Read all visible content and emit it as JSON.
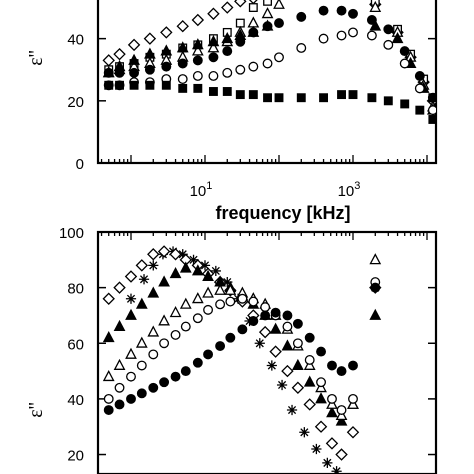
{
  "chart_data": [
    {
      "type": "scatter",
      "xscale": "log",
      "xlabel": "frequency [kHz]",
      "ylabel": "ε''",
      "xlim": [
        0.5,
        15000
      ],
      "ylim": [
        0,
        55
      ],
      "yticks": [
        "0",
        "20",
        "40"
      ],
      "xticks": [
        {
          "base": "10",
          "exp": "1",
          "value": 10
        },
        {
          "base": "10",
          "exp": "3",
          "value": 1000
        }
      ],
      "grid": false,
      "series": [
        {
          "marker": "diamond-open",
          "points": [
            [
              0.5,
              33
            ],
            [
              0.7,
              35
            ],
            [
              1.1,
              38
            ],
            [
              1.8,
              40
            ],
            [
              3,
              42
            ],
            [
              5,
              44
            ],
            [
              8,
              46
            ],
            [
              13,
              48
            ],
            [
              20,
              50
            ],
            [
              30,
              52
            ],
            [
              45,
              53
            ],
            [
              70,
              54
            ],
            [
              2000,
              51
            ],
            [
              4000,
              42
            ],
            [
              6000,
              34
            ],
            [
              9000,
              26
            ],
            [
              12000,
              20
            ]
          ]
        },
        {
          "marker": "square-open",
          "points": [
            [
              0.5,
              30
            ],
            [
              0.7,
              31
            ],
            [
              1.1,
              32
            ],
            [
              1.8,
              34
            ],
            [
              3,
              35
            ],
            [
              5,
              37
            ],
            [
              8,
              38
            ],
            [
              13,
              40
            ],
            [
              20,
              42
            ],
            [
              30,
              45
            ],
            [
              45,
              50
            ],
            [
              70,
              52
            ],
            [
              2000,
              52
            ],
            [
              4000,
              43
            ],
            [
              6000,
              35
            ],
            [
              9000,
              27
            ],
            [
              12000,
              21
            ]
          ]
        },
        {
          "marker": "triangle-open",
          "points": [
            [
              0.5,
              29
            ],
            [
              0.7,
              30
            ],
            [
              1.1,
              31
            ],
            [
              1.8,
              32
            ],
            [
              3,
              33
            ],
            [
              5,
              34
            ],
            [
              8,
              36
            ],
            [
              13,
              37
            ],
            [
              20,
              39
            ],
            [
              30,
              42
            ],
            [
              45,
              45
            ],
            [
              70,
              48
            ],
            [
              100,
              51
            ],
            [
              2000,
              50
            ],
            [
              4000,
              42
            ],
            [
              6000,
              34
            ],
            [
              9000,
              25
            ],
            [
              12000,
              18
            ]
          ]
        },
        {
          "marker": "triangle-filled",
          "points": [
            [
              0.5,
              29
            ],
            [
              0.7,
              31
            ],
            [
              1.1,
              33
            ],
            [
              1.8,
              35
            ],
            [
              3,
              36
            ],
            [
              5,
              37
            ],
            [
              8,
              38
            ],
            [
              13,
              39
            ],
            [
              20,
              40
            ],
            [
              30,
              41
            ],
            [
              45,
              42
            ],
            [
              70,
              44
            ],
            [
              2000,
              44
            ],
            [
              4000,
              40
            ],
            [
              6000,
              32
            ],
            [
              9000,
              24
            ],
            [
              12000,
              17
            ]
          ]
        },
        {
          "marker": "circle-filled",
          "points": [
            [
              0.5,
              29
            ],
            [
              0.7,
              29
            ],
            [
              1.1,
              29
            ],
            [
              1.8,
              30
            ],
            [
              3,
              31
            ],
            [
              5,
              32
            ],
            [
              8,
              33
            ],
            [
              13,
              34
            ],
            [
              20,
              36
            ],
            [
              30,
              39
            ],
            [
              45,
              42
            ],
            [
              70,
              44
            ],
            [
              100,
              45
            ],
            [
              200,
              47
            ],
            [
              400,
              49
            ],
            [
              700,
              49
            ],
            [
              1000,
              48
            ],
            [
              1800,
              46
            ],
            [
              3000,
              43
            ],
            [
              5000,
              36
            ],
            [
              8000,
              28
            ],
            [
              12000,
              21
            ]
          ]
        },
        {
          "marker": "circle-open",
          "points": [
            [
              0.5,
              25
            ],
            [
              0.7,
              25
            ],
            [
              1.1,
              26
            ],
            [
              1.8,
              26
            ],
            [
              3,
              27
            ],
            [
              5,
              27
            ],
            [
              8,
              28
            ],
            [
              13,
              28
            ],
            [
              20,
              29
            ],
            [
              30,
              30
            ],
            [
              45,
              31
            ],
            [
              70,
              32
            ],
            [
              100,
              34
            ],
            [
              200,
              37
            ],
            [
              400,
              40
            ],
            [
              700,
              41
            ],
            [
              1000,
              42
            ],
            [
              1800,
              41
            ],
            [
              3000,
              38
            ],
            [
              5000,
              32
            ],
            [
              8000,
              24
            ],
            [
              12000,
              17
            ]
          ]
        },
        {
          "marker": "square-filled",
          "points": [
            [
              0.5,
              25
            ],
            [
              0.7,
              25
            ],
            [
              1.1,
              25
            ],
            [
              1.8,
              25
            ],
            [
              3,
              25
            ],
            [
              5,
              24
            ],
            [
              8,
              24
            ],
            [
              13,
              23
            ],
            [
              20,
              23
            ],
            [
              30,
              22
            ],
            [
              45,
              22
            ],
            [
              70,
              21
            ],
            [
              100,
              21
            ],
            [
              200,
              21
            ],
            [
              400,
              21
            ],
            [
              700,
              22
            ],
            [
              1000,
              22
            ],
            [
              1800,
              21
            ],
            [
              3000,
              20
            ],
            [
              5000,
              19
            ],
            [
              8000,
              17
            ],
            [
              12000,
              14
            ]
          ]
        }
      ]
    },
    {
      "type": "scatter",
      "xscale": "log",
      "xlabel": "",
      "ylabel": "ε''",
      "xlim": [
        0.5,
        15000
      ],
      "ylim": [
        13,
        100
      ],
      "yticks": [
        "20",
        "40",
        "60",
        "80",
        "100"
      ],
      "grid": false,
      "series": [
        {
          "marker": "star",
          "points": [
            [
              1,
              76
            ],
            [
              1.5,
              83
            ],
            [
              2,
              88
            ],
            [
              2.7,
              92
            ],
            [
              3.7,
              93
            ],
            [
              5,
              92
            ],
            [
              7,
              90
            ],
            [
              10,
              88
            ],
            [
              14,
              86
            ],
            [
              20,
              82
            ],
            [
              28,
              76
            ],
            [
              40,
              68
            ],
            [
              55,
              60
            ],
            [
              80,
              52
            ],
            [
              110,
              45
            ],
            [
              150,
              36
            ],
            [
              220,
              28
            ],
            [
              320,
              22
            ],
            [
              450,
              17
            ],
            [
              600,
              14
            ],
            [
              2000,
              80
            ]
          ]
        },
        {
          "marker": "diamond-open",
          "points": [
            [
              0.5,
              76
            ],
            [
              0.7,
              80
            ],
            [
              1,
              84
            ],
            [
              1.4,
              88
            ],
            [
              2,
              92
            ],
            [
              2.8,
              93
            ],
            [
              4,
              92
            ],
            [
              5.5,
              90
            ],
            [
              8,
              88
            ],
            [
              11,
              85
            ],
            [
              16,
              82
            ],
            [
              22,
              79
            ],
            [
              32,
              75
            ],
            [
              45,
              70
            ],
            [
              65,
              64
            ],
            [
              90,
              57
            ],
            [
              130,
              50
            ],
            [
              180,
              44
            ],
            [
              260,
              38
            ],
            [
              370,
              30
            ],
            [
              520,
              24
            ],
            [
              700,
              20
            ],
            [
              1000,
              28
            ],
            [
              2000,
              80
            ]
          ]
        },
        {
          "marker": "triangle-filled",
          "points": [
            [
              0.5,
              62
            ],
            [
              0.7,
              66
            ],
            [
              1,
              70
            ],
            [
              1.4,
              74
            ],
            [
              2,
              78
            ],
            [
              2.8,
              82
            ],
            [
              4,
              85
            ],
            [
              5.5,
              87
            ],
            [
              8,
              86
            ],
            [
              11,
              84
            ],
            [
              16,
              82
            ],
            [
              22,
              80
            ],
            [
              32,
              77
            ],
            [
              45,
              74
            ],
            [
              65,
              70
            ],
            [
              90,
              65
            ],
            [
              130,
              59
            ],
            [
              180,
              52
            ],
            [
              260,
              46
            ],
            [
              370,
              40
            ],
            [
              520,
              35
            ],
            [
              700,
              32
            ],
            [
              1000,
              38
            ],
            [
              2000,
              70
            ]
          ]
        },
        {
          "marker": "triangle-open",
          "points": [
            [
              0.5,
              48
            ],
            [
              0.7,
              52
            ],
            [
              1,
              56
            ],
            [
              1.4,
              60
            ],
            [
              2,
              64
            ],
            [
              2.8,
              68
            ],
            [
              4,
              71
            ],
            [
              5.5,
              74
            ],
            [
              8,
              76
            ],
            [
              11,
              78
            ],
            [
              16,
              79
            ],
            [
              22,
              79
            ],
            [
              32,
              78
            ],
            [
              45,
              76
            ],
            [
              65,
              74
            ],
            [
              90,
              70
            ],
            [
              130,
              65
            ],
            [
              180,
              59
            ],
            [
              260,
              52
            ],
            [
              370,
              44
            ],
            [
              520,
              38
            ],
            [
              700,
              34
            ],
            [
              1000,
              38
            ],
            [
              2000,
              90
            ]
          ]
        },
        {
          "marker": "circle-open",
          "points": [
            [
              0.3,
              38
            ],
            [
              0.5,
              40
            ],
            [
              0.7,
              44
            ],
            [
              1,
              48
            ],
            [
              1.4,
              52
            ],
            [
              2,
              56
            ],
            [
              2.8,
              60
            ],
            [
              4,
              63
            ],
            [
              5.5,
              66
            ],
            [
              8,
              69
            ],
            [
              11,
              72
            ],
            [
              16,
              74
            ],
            [
              22,
              75
            ],
            [
              32,
              76
            ],
            [
              45,
              75
            ],
            [
              65,
              73
            ],
            [
              90,
              70
            ],
            [
              130,
              66
            ],
            [
              180,
              60
            ],
            [
              260,
              54
            ],
            [
              370,
              46
            ],
            [
              520,
              40
            ],
            [
              700,
              36
            ],
            [
              1000,
              40
            ],
            [
              2000,
              82
            ]
          ]
        },
        {
          "marker": "circle-filled",
          "points": [
            [
              0.5,
              36
            ],
            [
              0.7,
              38
            ],
            [
              1,
              40
            ],
            [
              1.4,
              42
            ],
            [
              2,
              44
            ],
            [
              2.8,
              46
            ],
            [
              4,
              48
            ],
            [
              5.5,
              50
            ],
            [
              8,
              53
            ],
            [
              11,
              56
            ],
            [
              16,
              59
            ],
            [
              22,
              62
            ],
            [
              32,
              65
            ],
            [
              45,
              68
            ],
            [
              65,
              70
            ],
            [
              90,
              71
            ],
            [
              130,
              70
            ],
            [
              180,
              67
            ],
            [
              260,
              62
            ],
            [
              370,
              57
            ],
            [
              520,
              52
            ],
            [
              700,
              50
            ],
            [
              1000,
              52
            ],
            [
              2000,
              80
            ]
          ]
        }
      ]
    }
  ]
}
